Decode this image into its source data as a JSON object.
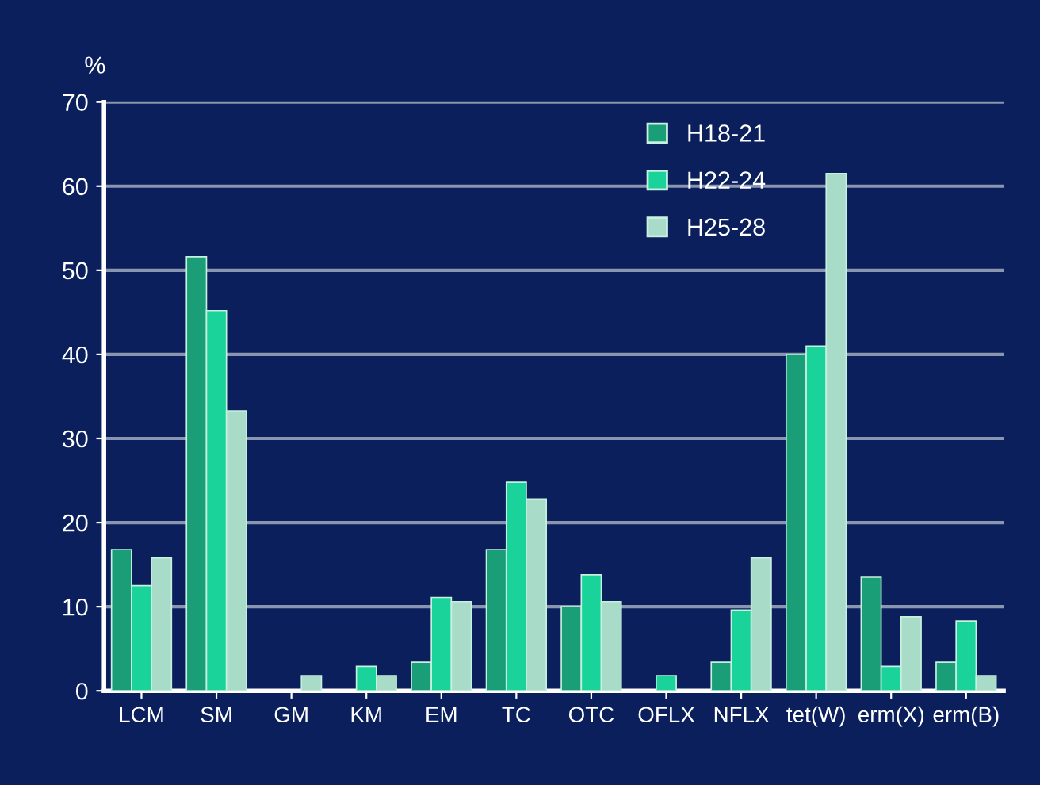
{
  "chart_data": {
    "type": "bar",
    "ylabel": "%",
    "categories": [
      "LCM",
      "SM",
      "GM",
      "KM",
      "EM",
      "TC",
      "OTC",
      "OFLX",
      "NFLX",
      "tet(W)",
      "erm(X)",
      "erm(B)"
    ],
    "series": [
      {
        "name": "H18-21",
        "color": "#1a9e78",
        "values": [
          16.8,
          51.6,
          null,
          null,
          3.4,
          16.8,
          10.0,
          null,
          3.4,
          40.0,
          13.5,
          3.4
        ]
      },
      {
        "name": "H22-24",
        "color": "#19d39a",
        "values": [
          12.5,
          45.2,
          null,
          2.9,
          11.1,
          24.8,
          13.8,
          1.8,
          9.6,
          41.0,
          2.9,
          8.3
        ]
      },
      {
        "name": "H25-28",
        "color": "#a8dcc8",
        "values": [
          15.8,
          33.3,
          1.8,
          1.8,
          10.6,
          22.8,
          10.6,
          null,
          15.8,
          61.5,
          8.8,
          1.8
        ]
      }
    ],
    "ylim": [
      0,
      70
    ],
    "yticks": [
      0,
      10,
      20,
      30,
      40,
      50,
      60,
      70
    ],
    "grid": "y",
    "legend": "top"
  }
}
